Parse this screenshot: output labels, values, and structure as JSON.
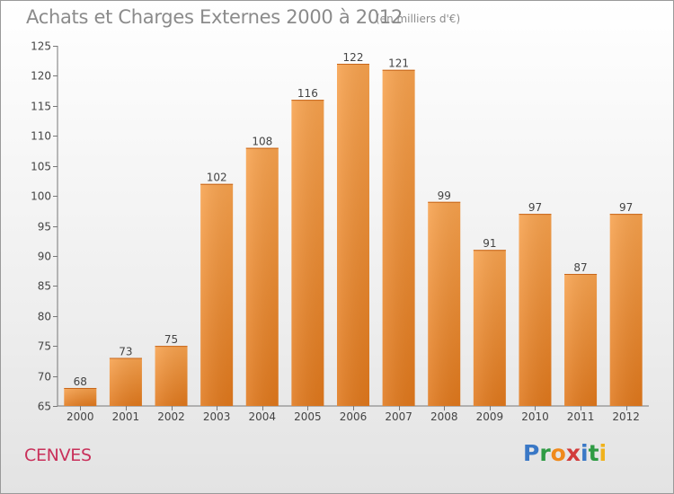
{
  "header": {
    "title": "Achats et Charges Externes 2000 à 2012",
    "unit": "(en milliers d'€)"
  },
  "footer": {
    "commune": "CENVES",
    "logo_letters": [
      "P",
      "r",
      "o",
      "x",
      "i",
      "t",
      "i"
    ]
  },
  "colors": {
    "bar_top": "#f7a24e",
    "bar_bottom": "#e0781c",
    "axis_text": "#444444",
    "title_text": "#8b8b8b",
    "commune_text": "#c9305a"
  },
  "chart_data": {
    "type": "bar",
    "title": "Achats et Charges Externes 2000 à 2012",
    "subtitle": "(en milliers d'€)",
    "categories": [
      "2000",
      "2001",
      "2002",
      "2003",
      "2004",
      "2005",
      "2006",
      "2007",
      "2008",
      "2009",
      "2010",
      "2011",
      "2012"
    ],
    "values": [
      68,
      73,
      75,
      102,
      108,
      116,
      122,
      121,
      99,
      91,
      97,
      87,
      97
    ],
    "yticks": [
      65,
      70,
      75,
      80,
      85,
      90,
      95,
      100,
      105,
      110,
      115,
      120,
      125
    ],
    "ylim": [
      65,
      125
    ],
    "grid": false,
    "data_labels": true
  }
}
